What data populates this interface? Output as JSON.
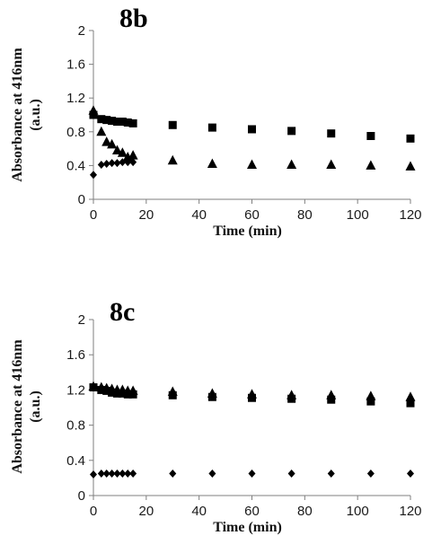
{
  "chart_data": [
    {
      "type": "scatter",
      "title": "8b",
      "xlabel": "Time (min)",
      "ylabel": "Absorbance at 416nm (a.u.)",
      "xlim": [
        0,
        120
      ],
      "ylim": [
        0,
        2
      ],
      "xticks": [
        0,
        20,
        40,
        60,
        80,
        100,
        120
      ],
      "yticks": [
        "0",
        "0.4",
        "0.8",
        "1.2",
        "1.6",
        "2"
      ],
      "grid": false,
      "series": [
        {
          "marker": "square",
          "points": [
            [
              0,
              1.0
            ],
            [
              3,
              0.95
            ],
            [
              5,
              0.94
            ],
            [
              7,
              0.93
            ],
            [
              9,
              0.92
            ],
            [
              11,
              0.92
            ],
            [
              13,
              0.91
            ],
            [
              15,
              0.9
            ],
            [
              30,
              0.88
            ],
            [
              45,
              0.85
            ],
            [
              60,
              0.83
            ],
            [
              75,
              0.81
            ],
            [
              90,
              0.78
            ],
            [
              105,
              0.75
            ],
            [
              120,
              0.72
            ]
          ]
        },
        {
          "marker": "triangle",
          "points": [
            [
              0,
              1.05
            ],
            [
              3,
              0.8
            ],
            [
              5,
              0.68
            ],
            [
              7,
              0.65
            ],
            [
              9,
              0.58
            ],
            [
              11,
              0.55
            ],
            [
              13,
              0.5
            ],
            [
              15,
              0.52
            ],
            [
              30,
              0.46
            ],
            [
              45,
              0.42
            ],
            [
              60,
              0.41
            ],
            [
              75,
              0.41
            ],
            [
              90,
              0.41
            ],
            [
              105,
              0.4
            ],
            [
              120,
              0.39
            ]
          ]
        },
        {
          "marker": "diamond",
          "points": [
            [
              0,
              0.29
            ],
            [
              3,
              0.41
            ],
            [
              5,
              0.42
            ],
            [
              7,
              0.43
            ],
            [
              9,
              0.43
            ],
            [
              11,
              0.44
            ],
            [
              13,
              0.44
            ],
            [
              15,
              0.44
            ]
          ]
        }
      ]
    },
    {
      "type": "scatter",
      "title": "8c",
      "xlabel": "Time (min)",
      "ylabel": "Absorbance at 416nm (a.u.)",
      "xlim": [
        0,
        120
      ],
      "ylim": [
        0,
        2
      ],
      "xticks": [
        0,
        20,
        40,
        60,
        80,
        100,
        120
      ],
      "yticks": [
        "0",
        "0.4",
        "0.8",
        "1.2",
        "1.6",
        "2"
      ],
      "grid": false,
      "series": [
        {
          "marker": "triangle",
          "points": [
            [
              0,
              1.24
            ],
            [
              3,
              1.23
            ],
            [
              5,
              1.22
            ],
            [
              7,
              1.21
            ],
            [
              9,
              1.2
            ],
            [
              11,
              1.2
            ],
            [
              13,
              1.19
            ],
            [
              15,
              1.19
            ],
            [
              30,
              1.18
            ],
            [
              45,
              1.16
            ],
            [
              60,
              1.15
            ],
            [
              75,
              1.14
            ],
            [
              90,
              1.14
            ],
            [
              105,
              1.13
            ],
            [
              120,
              1.12
            ]
          ]
        },
        {
          "marker": "square",
          "points": [
            [
              0,
              1.23
            ],
            [
              3,
              1.2
            ],
            [
              5,
              1.19
            ],
            [
              7,
              1.17
            ],
            [
              9,
              1.16
            ],
            [
              11,
              1.16
            ],
            [
              13,
              1.15
            ],
            [
              15,
              1.15
            ],
            [
              30,
              1.14
            ],
            [
              45,
              1.12
            ],
            [
              60,
              1.11
            ],
            [
              75,
              1.1
            ],
            [
              90,
              1.09
            ],
            [
              105,
              1.07
            ],
            [
              120,
              1.05
            ]
          ]
        },
        {
          "marker": "diamond",
          "points": [
            [
              0,
              0.24
            ],
            [
              3,
              0.25
            ],
            [
              5,
              0.25
            ],
            [
              7,
              0.25
            ],
            [
              9,
              0.25
            ],
            [
              11,
              0.25
            ],
            [
              13,
              0.25
            ],
            [
              15,
              0.25
            ],
            [
              30,
              0.25
            ],
            [
              45,
              0.25
            ],
            [
              60,
              0.25
            ],
            [
              75,
              0.25
            ],
            [
              90,
              0.25
            ],
            [
              105,
              0.25
            ],
            [
              120,
              0.25
            ]
          ]
        }
      ]
    }
  ]
}
